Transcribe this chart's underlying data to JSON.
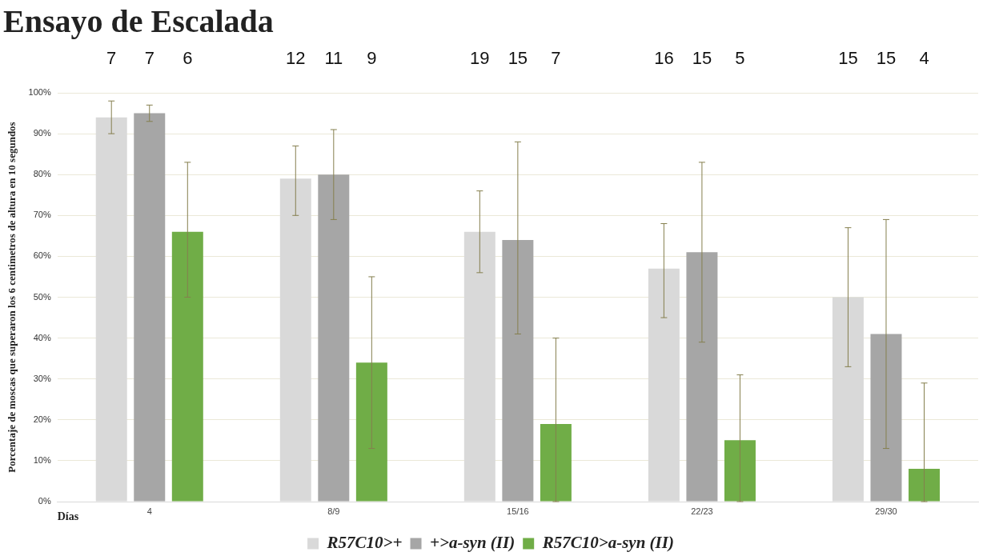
{
  "chart_data": {
    "type": "bar",
    "title": "Ensayo de Escalada",
    "xlabel": "Días",
    "ylabel": "Porcentaje de moscas que superaron los 6 centimetros de altura en 10 segundos",
    "categories": [
      "4",
      "8/9",
      "15/16",
      "22/23",
      "29/30"
    ],
    "series": [
      {
        "name": "R57C10>+",
        "color": "#d9d9d9",
        "values": [
          94,
          79,
          66,
          57,
          50
        ],
        "errors": [
          [
            90,
            98
          ],
          [
            70,
            87
          ],
          [
            56,
            76
          ],
          [
            45,
            68
          ],
          [
            33,
            67
          ]
        ]
      },
      {
        "name": "+>a-syn (II)",
        "color": "#a6a6a6",
        "values": [
          95,
          80,
          64,
          61,
          41
        ],
        "errors": [
          [
            93,
            97
          ],
          [
            69,
            91
          ],
          [
            41,
            88
          ],
          [
            39,
            83
          ],
          [
            13,
            69
          ]
        ]
      },
      {
        "name": "R57C10>a-syn (II)",
        "color": "#70ad47",
        "values": [
          66,
          34,
          19,
          15,
          8
        ],
        "errors": [
          [
            50,
            83
          ],
          [
            13,
            55
          ],
          [
            0,
            40
          ],
          [
            0,
            31
          ],
          [
            0,
            29
          ]
        ]
      }
    ],
    "ylim": [
      0,
      100
    ],
    "yticks": [
      {
        "value": 0,
        "label": "0%"
      },
      {
        "value": 10,
        "label": "10%"
      },
      {
        "value": 20,
        "label": "20%"
      },
      {
        "value": 30,
        "label": "30%"
      },
      {
        "value": 40,
        "label": "40%"
      },
      {
        "value": 50,
        "label": "50%"
      },
      {
        "value": 60,
        "label": "60%"
      },
      {
        "value": 70,
        "label": "70%"
      },
      {
        "value": 80,
        "label": "80%"
      },
      {
        "value": 90,
        "label": "90%"
      },
      {
        "value": 100,
        "label": "100%"
      }
    ],
    "grid": "y",
    "legend": "bottom",
    "annotations": [
      "7",
      "7",
      "6",
      "12",
      "11",
      "9",
      "19",
      "15",
      "7",
      "16",
      "15",
      "5",
      "15",
      "15",
      "4"
    ]
  }
}
